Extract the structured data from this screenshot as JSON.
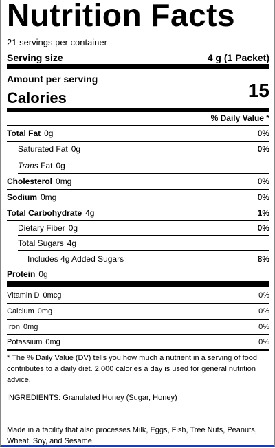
{
  "title": "Nutrition Facts",
  "servings_per_container": "21 servings per container",
  "serving_size": {
    "label": "Serving size",
    "value": "4 g (1 Packet)"
  },
  "amount_per_serving": "Amount per serving",
  "calories": {
    "label": "Calories",
    "value": "15"
  },
  "daily_value_header": "% Daily Value *",
  "nutrients": [
    {
      "name": "Total Fat",
      "amount": "0g",
      "daily_value": "0%"
    },
    {
      "name": "Saturated Fat",
      "amount": "0g",
      "daily_value": "0%"
    },
    {
      "name_italic": "Trans",
      "name": "Fat",
      "amount": "0g"
    },
    {
      "name": "Cholesterol",
      "amount": "0mg",
      "daily_value": "0%"
    },
    {
      "name": "Sodium",
      "amount": "0mg",
      "daily_value": "0%"
    },
    {
      "name": "Total Carbohydrate",
      "amount": "4g",
      "daily_value": "1%"
    },
    {
      "name": "Dietary Fiber",
      "amount": "0g",
      "daily_value": "0%"
    },
    {
      "name": "Total Sugars",
      "amount": "4g"
    },
    {
      "name": "Includes 4g Added Sugars",
      "daily_value": "8%"
    },
    {
      "name": "Protein",
      "amount": "0g"
    }
  ],
  "vitamins": [
    {
      "name": "Vitamin D",
      "amount": "0mcg",
      "daily_value": "0%"
    },
    {
      "name": "Calcium",
      "amount": "0mg",
      "daily_value": "0%"
    },
    {
      "name": "Iron",
      "amount": "0mg",
      "daily_value": "0%"
    },
    {
      "name": "Potassium",
      "amount": "0mg",
      "daily_value": "0%"
    }
  ],
  "footnote": "* The % Daily Value (DV) tells you how much a nutrient in a serving of food contributes to a daily diet. 2,000 calories a day is used for general nutrition advice.",
  "ingredients": "INGREDIENTS: Granulated Honey (Sugar, Honey)",
  "allergens": "Made in a facility that also processes Milk, Eggs, Fish, Tree Nuts, Peanuts, Wheat, Soy, and Sesame."
}
